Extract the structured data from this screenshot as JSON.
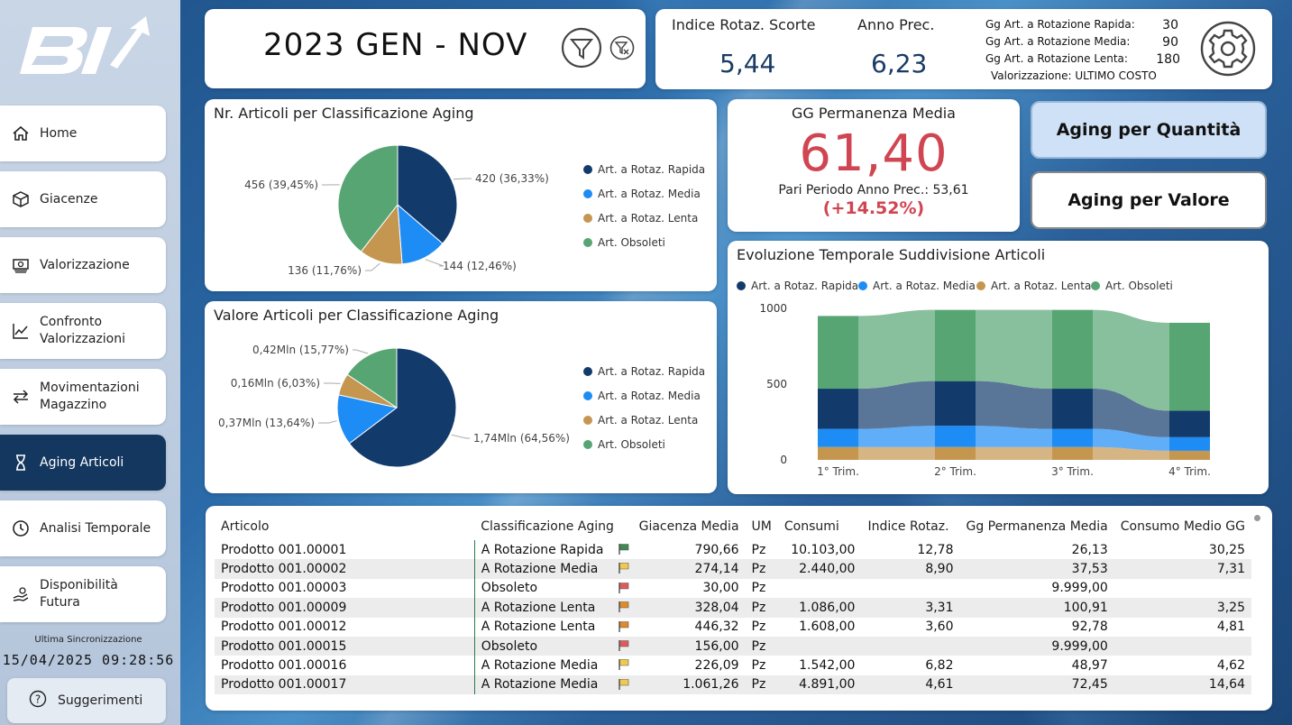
{
  "sidebar": {
    "items": [
      {
        "label": "Home",
        "icon": "home-icon"
      },
      {
        "label": "Giacenze",
        "icon": "box-icon"
      },
      {
        "label": "Valorizzazione",
        "icon": "money-icon"
      },
      {
        "label": "Confronto\nValorizzazioni",
        "icon": "line-chart-icon"
      },
      {
        "label": "Movimentazioni\nMagazzino",
        "icon": "arrows-icon"
      },
      {
        "label": "Aging Articoli",
        "icon": "hourglass-icon"
      },
      {
        "label": "Analisi Temporale",
        "icon": "clock-icon"
      },
      {
        "label": "Disponibilità\nFutura",
        "icon": "hand-coins-icon"
      }
    ],
    "active_index": 5,
    "sync_label": "Ultima Sincronizzazione",
    "sync_time": "15/04/2025 09:28:56",
    "suggest_label": "Suggerimenti"
  },
  "period": {
    "text": "2023 GEN - NOV"
  },
  "kpi": {
    "indice_label": "Indice Rotaz. Scorte",
    "indice_value": "5,44",
    "anno_prec_label": "Anno Prec.",
    "anno_prec_value": "6,23",
    "rot_rapida_label": "Gg Art. a Rotazione Rapida:",
    "rot_rapida_value": "30",
    "rot_media_label": "Gg Art. a Rotazione Media:",
    "rot_media_value": "90",
    "rot_lenta_label": "Gg Art. a Rotazione Lenta:",
    "rot_lenta_value": "180",
    "valorizzazione": "Valorizzazione: ULTIMO COSTO"
  },
  "legend": [
    "Art. a Rotaz. Rapida",
    "Art. a Rotaz. Media",
    "Art. a Rotaz. Lenta",
    "Art. Obsoleti"
  ],
  "colors": {
    "rapida": "#123b6b",
    "media": "#1e8cf5",
    "lenta": "#c49650",
    "obsoleti": "#56a573",
    "accent_red": "#d04552"
  },
  "perm": {
    "title": "GG Permanenza Media",
    "value": "61,40",
    "prev": "Pari Periodo Anno Prec.: 53,61",
    "delta": "(+14.52%)"
  },
  "buttons": {
    "quantita": "Aging per Quantità",
    "valore": "Aging per Valore"
  },
  "chart_data": [
    {
      "type": "pie",
      "title": "Nr. Articoli per Classificazione Aging",
      "categories": [
        "Art. a Rotaz. Rapida",
        "Art. a Rotaz. Media",
        "Art. a Rotaz. Lenta",
        "Art. Obsoleti"
      ],
      "values": [
        420,
        144,
        136,
        456
      ],
      "labels": [
        "420 (36,33%)",
        "144 (12,46%)",
        "136 (11,76%)",
        "456 (39,45%)"
      ]
    },
    {
      "type": "pie",
      "title": "Valore Articoli per Classificazione Aging",
      "categories": [
        "Art. a Rotaz. Rapida",
        "Art. a Rotaz. Media",
        "Art. a Rotaz. Lenta",
        "Art. Obsoleti"
      ],
      "values": [
        1.74,
        0.37,
        0.16,
        0.42
      ],
      "labels": [
        "1,74Mln (64,56%)",
        "0,37Mln (13,64%)",
        "0,16Mln (6,03%)",
        "0,42Mln (15,77%)"
      ]
    },
    {
      "type": "area",
      "title": "Evoluzione Temporale Suddivisione Articoli",
      "categories": [
        "1° Trim.",
        "2° Trim.",
        "3° Trim.",
        "4° Trim."
      ],
      "ylim": [
        0,
        1000
      ],
      "yticks": [
        "0",
        "500",
        "1000"
      ],
      "series": [
        {
          "name": "Art. a Rotaz. Lenta",
          "values": [
            85,
            85,
            85,
            60
          ]
        },
        {
          "name": "Art. a Rotaz. Media",
          "values": [
            120,
            140,
            120,
            90
          ]
        },
        {
          "name": "Art. a Rotaz. Rapida",
          "values": [
            265,
            295,
            265,
            175
          ]
        },
        {
          "name": "Art. Obsoleti",
          "values": [
            480,
            470,
            520,
            580
          ]
        }
      ]
    }
  ],
  "table": {
    "columns": [
      "Articolo",
      "Classificazione Aging",
      "Giacenza Media",
      "UM",
      "Consumi",
      "Indice Rotaz.",
      "Gg Permanenza Media",
      "Consumo Medio GG"
    ],
    "rows": [
      [
        "Prodotto 001.00001",
        "A Rotazione Rapida",
        "green",
        "790,66",
        "Pz",
        "10.103,00",
        "12,78",
        "26,13",
        "30,25"
      ],
      [
        "Prodotto 001.00002",
        "A Rotazione Media",
        "yellow",
        "274,14",
        "Pz",
        "2.440,00",
        "8,90",
        "37,53",
        "7,31"
      ],
      [
        "Prodotto 001.00003",
        "Obsoleto",
        "red",
        "30,00",
        "Pz",
        "",
        "",
        "9.999,00",
        ""
      ],
      [
        "Prodotto 001.00009",
        "A Rotazione Lenta",
        "orange",
        "328,04",
        "Pz",
        "1.086,00",
        "3,31",
        "100,91",
        "3,25"
      ],
      [
        "Prodotto 001.00012",
        "A Rotazione Lenta",
        "orange",
        "446,32",
        "Pz",
        "1.608,00",
        "3,60",
        "92,78",
        "4,81"
      ],
      [
        "Prodotto 001.00015",
        "Obsoleto",
        "red",
        "156,00",
        "Pz",
        "",
        "",
        "9.999,00",
        ""
      ],
      [
        "Prodotto 001.00016",
        "A Rotazione Media",
        "yellow",
        "226,09",
        "Pz",
        "1.542,00",
        "6,82",
        "48,97",
        "4,62"
      ],
      [
        "Prodotto 001.00017",
        "A Rotazione Media",
        "yellow",
        "1.061,26",
        "Pz",
        "4.891,00",
        "4,61",
        "72,45",
        "14,64"
      ]
    ]
  }
}
